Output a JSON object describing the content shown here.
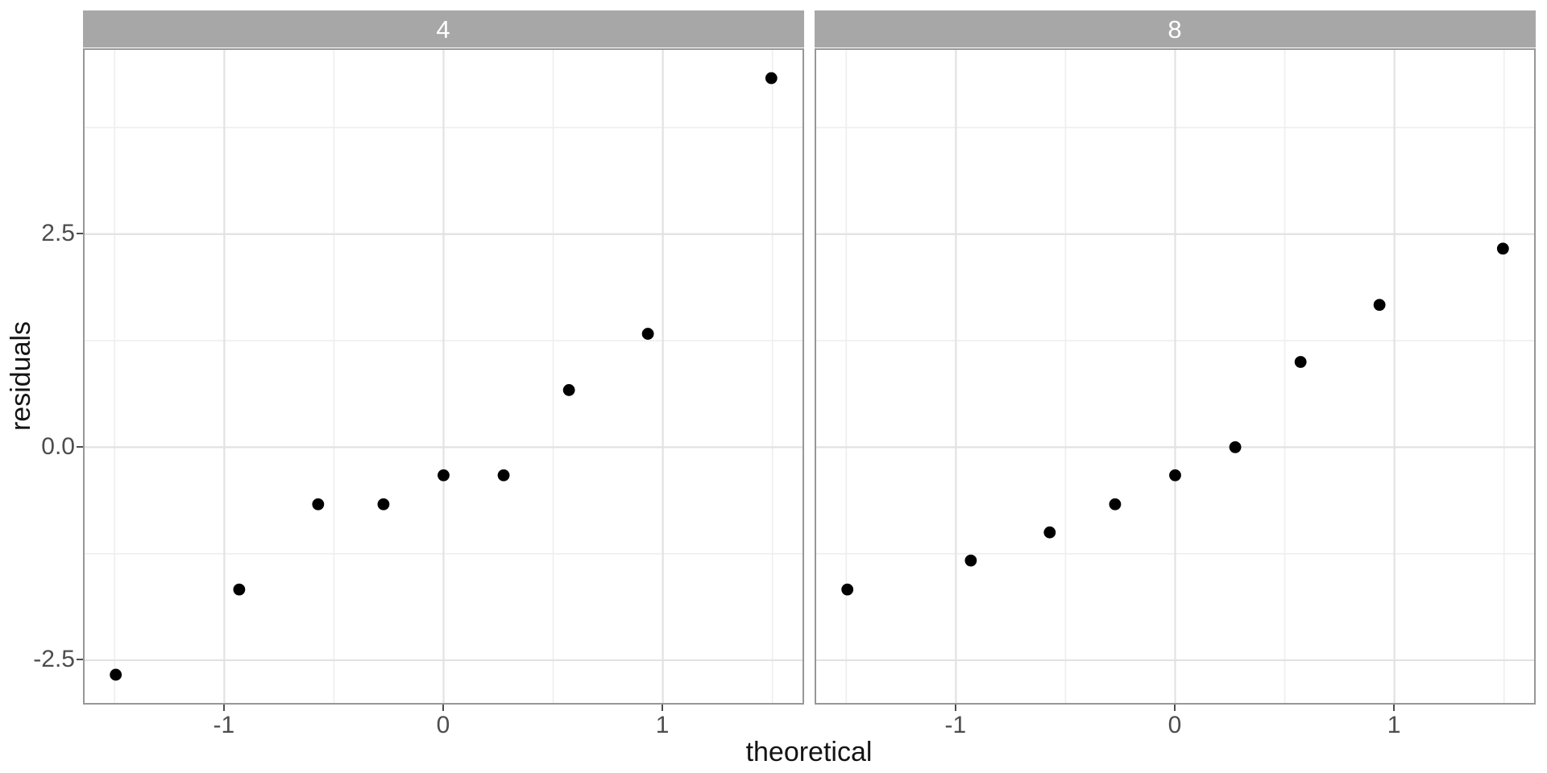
{
  "figure": {
    "x_axis_title": "theoretical",
    "y_axis_title": "residuals"
  },
  "axes": {
    "x_tick_labels": [
      "-1",
      "0",
      "1"
    ],
    "x_tick_values": [
      -1,
      0,
      1
    ],
    "y_tick_labels": [
      "2.5",
      "0.0",
      "-2.5"
    ],
    "y_tick_values": [
      2.5,
      0.0,
      -2.5
    ]
  },
  "colors": {
    "background": "#ffffff",
    "strip_fill": "#a7a7a7",
    "strip_text": "#ffffff",
    "panel_background": "#ffffff",
    "panel_border": "#979797",
    "grid_major": "#e2e2e2",
    "grid_minor": "#eeeeee",
    "point": "#000000",
    "tick_mark": "#4d4d4d",
    "tick_label_text": "#4d4d4d",
    "axis_title_text": "#141414"
  },
  "chart_data": {
    "type": "scatter",
    "title": "",
    "xlabel": "theoretical",
    "ylabel": "residuals",
    "facet_labels": [
      "4",
      "8"
    ],
    "xlim": [
      -1.6445,
      1.6445
    ],
    "ylim": [
      -3.02,
      4.68
    ],
    "x_major_gridlines": [
      -1,
      0,
      1
    ],
    "x_minor_gridlines": [
      -1.5,
      -0.5,
      0.5,
      1.5
    ],
    "y_major_gridlines": [
      2.5,
      0.0,
      -2.5
    ],
    "y_minor_gridlines": [
      3.75,
      1.25,
      -1.25
    ],
    "grid": true,
    "legend_position": "none",
    "point_radius_px": 7.4,
    "series": [
      {
        "name": "4",
        "x": [
          -1.495,
          -0.932,
          -0.572,
          -0.274,
          0.0,
          0.274,
          0.572,
          0.932,
          1.495
        ],
        "y": [
          -2.67,
          -1.67,
          -0.67,
          -0.67,
          -0.33,
          -0.33,
          0.67,
          1.33,
          4.33
        ]
      },
      {
        "name": "8",
        "x": [
          -1.495,
          -0.932,
          -0.572,
          -0.274,
          0.0,
          0.274,
          0.572,
          0.932,
          1.495
        ],
        "y": [
          -1.67,
          -1.33,
          -1.0,
          -0.67,
          -0.33,
          0.0,
          1.0,
          1.67,
          2.33
        ]
      }
    ]
  }
}
